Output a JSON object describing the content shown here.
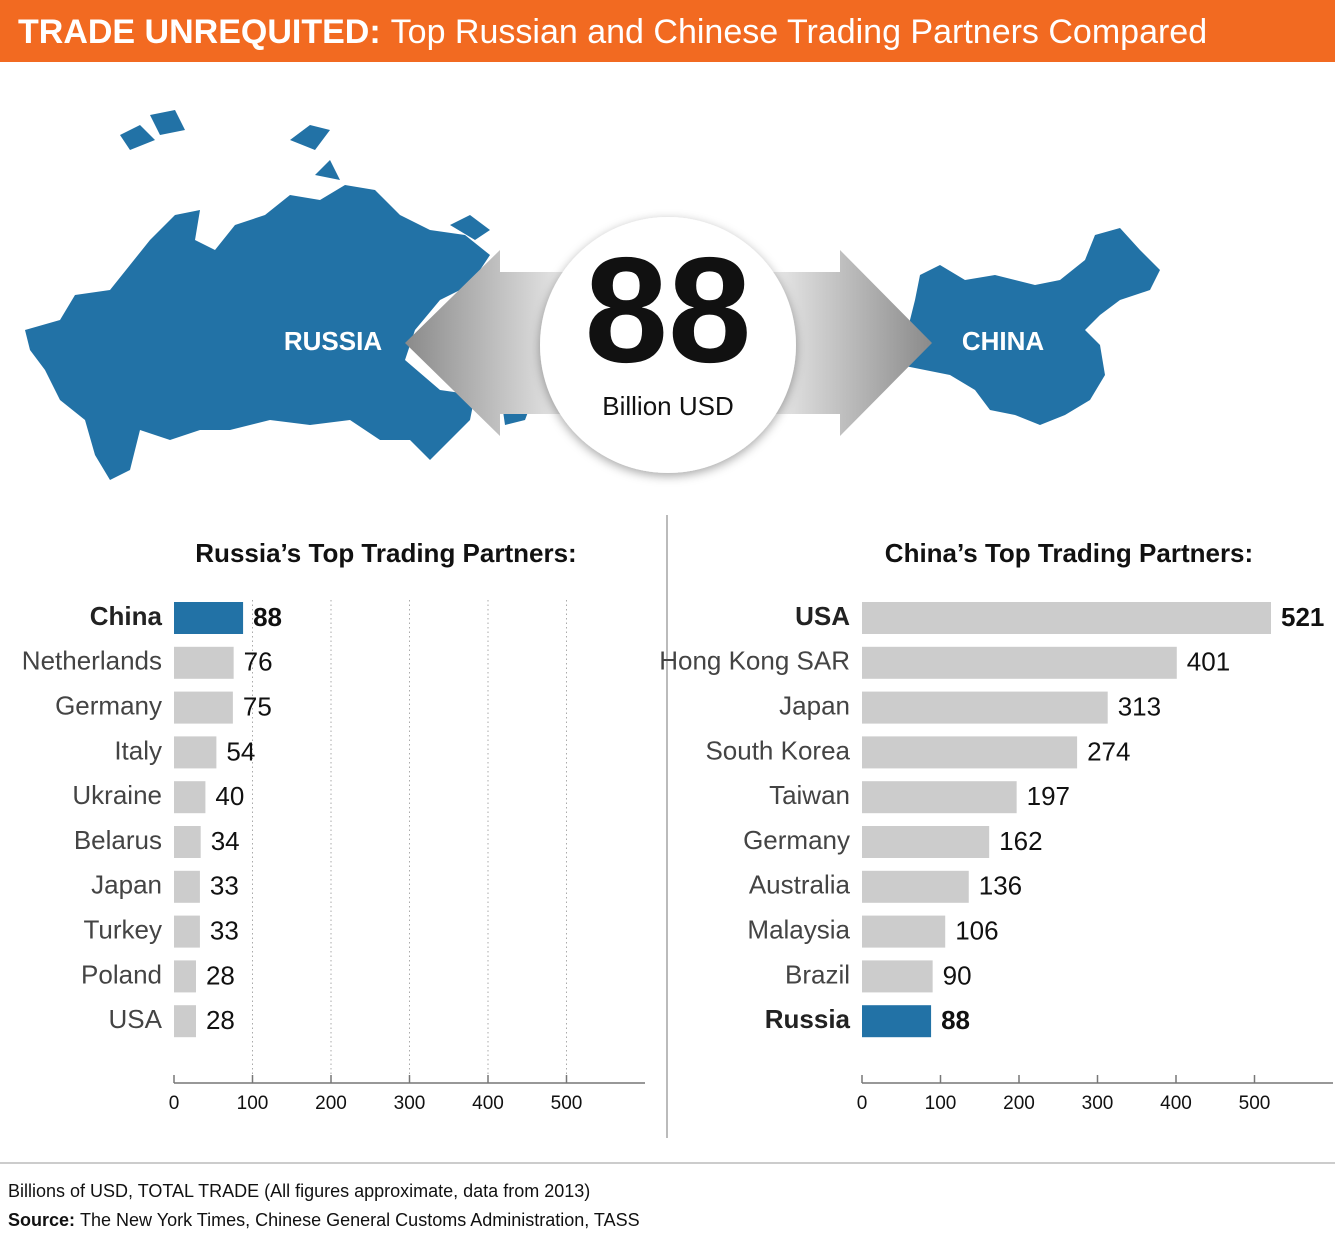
{
  "header": {
    "title_bold": "TRADE UNREQUITED:",
    "title_rest": "Top Russian and Chinese Trading Partners Compared"
  },
  "map": {
    "left_label": "RUSSIA",
    "right_label": "CHINA",
    "value": 88,
    "unit": "Billion USD"
  },
  "chart_data": [
    {
      "type": "hbar",
      "title": "Russia’s Top Trading Partners:",
      "categories": [
        "China",
        "Netherlands",
        "Germany",
        "Italy",
        "Ukraine",
        "Belarus",
        "Japan",
        "Turkey",
        "Poland",
        "USA"
      ],
      "values": [
        88,
        76,
        75,
        54,
        40,
        34,
        33,
        33,
        28,
        28
      ],
      "bar_color": "#cccccc",
      "highlight_color": "#2272a6",
      "highlight_index": 0,
      "xlim": [
        0,
        600
      ],
      "xticks": [
        0,
        100,
        200,
        300,
        400,
        500
      ],
      "grid": true
    },
    {
      "type": "hbar",
      "title": "China’s Top Trading Partners:",
      "categories": [
        "USA",
        "Hong Kong SAR",
        "Japan",
        "South Korea",
        "Taiwan",
        "Germany",
        "Australia",
        "Malaysia",
        "Brazil",
        "Russia"
      ],
      "values": [
        521,
        401,
        313,
        274,
        197,
        162,
        136,
        106,
        90,
        88
      ],
      "bar_color": "#cccccc",
      "highlight_color": "#2272a6",
      "highlight_index": 9,
      "bold_indices": [
        0,
        9
      ],
      "xlim": [
        0,
        600
      ],
      "xticks": [
        0,
        100,
        200,
        300,
        400,
        500
      ],
      "grid": false
    }
  ],
  "footer": {
    "note": "Billions of USD, TOTAL TRADE (All figures approximate, data from 2013)",
    "source_label": "Source:",
    "source": "The New York Times, Chinese General Customs Administration, TASS"
  }
}
